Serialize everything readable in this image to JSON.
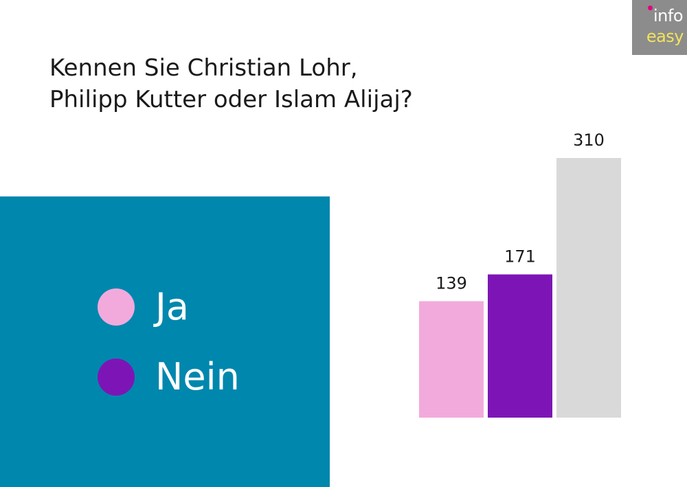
{
  "logo": {
    "top": "info",
    "bottom": "easy"
  },
  "chart_data": {
    "type": "bar",
    "title_lines": [
      "Kennen Sie Christian Lohr,",
      "Philipp Kutter oder Islam Alijaj?"
    ],
    "categories": [
      "Ja",
      "Nein",
      ""
    ],
    "values": [
      139,
      171,
      310
    ],
    "data_labels": [
      "139",
      "171",
      "310"
    ],
    "colors": [
      "#f2aadd",
      "#7d15b6",
      "#d9d9d9"
    ],
    "legend": [
      {
        "label": "Ja",
        "color": "#f2aadd"
      },
      {
        "label": "Nein",
        "color": "#7d15b6"
      }
    ],
    "ylim": [
      0,
      310
    ],
    "xlabel": "",
    "ylabel": "",
    "grid": false,
    "legend_placement": "left"
  }
}
